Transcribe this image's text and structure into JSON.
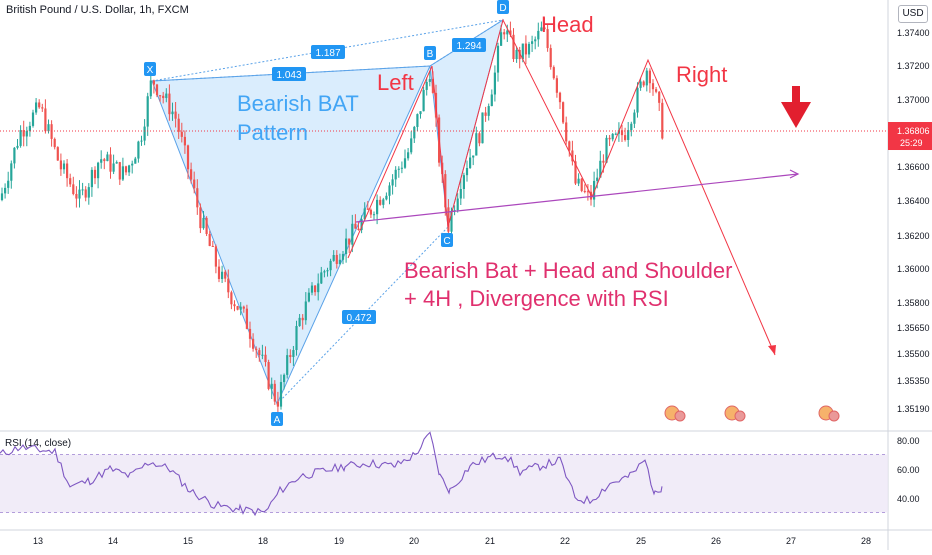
{
  "header": {
    "symbol_title": "British Pound / U.S. Dollar, 1h, FXCM",
    "currency": "USD"
  },
  "price_tag": {
    "value": "1.36806",
    "countdown": "25:29",
    "color": "#f23645"
  },
  "annotations": {
    "pattern_name_line1": "Bearish BAT",
    "pattern_name_line2": "Pattern",
    "left": "Left",
    "head": "Head",
    "right": "Right",
    "summary_line1": "Bearish Bat + Head and Shoulder",
    "summary_line2": "+ 4H , Divergence with RSI",
    "ratio_xb": "1.187",
    "ratio_xa": "1.043",
    "ratio_bd": "1.294",
    "ratio_ac": "0.472",
    "point_x": "X",
    "point_a": "A",
    "point_b": "B",
    "point_c": "C",
    "point_d": "D"
  },
  "chart_data": [
    {
      "type": "candlestick",
      "title": "British Pound / U.S. Dollar, 1h, FXCM",
      "y_ticks": [
        "1.37400",
        "1.37200",
        "1.37000",
        "1.36800",
        "1.36600",
        "1.36400",
        "1.36200",
        "1.36000",
        "1.35800",
        "1.35650",
        "1.35500",
        "1.35350",
        "1.35190"
      ],
      "x_ticks": [
        "13",
        "14",
        "15",
        "18",
        "19",
        "20",
        "21",
        "22",
        "25",
        "26",
        "27",
        "28"
      ],
      "ylim": [
        1.3519,
        1.3745
      ],
      "key_points": [
        {
          "label": "X",
          "date": "14",
          "price": 1.3712
        },
        {
          "label": "A",
          "date": "18",
          "price": 1.3521
        },
        {
          "label": "B",
          "date": "20",
          "price": 1.3718
        },
        {
          "label": "C",
          "date": "20",
          "price": 1.3624
        },
        {
          "label": "D",
          "date": "21",
          "price": 1.3745
        }
      ],
      "current_price": 1.36806,
      "colors": {
        "up": "#26a69a",
        "down": "#ef5350",
        "pattern_fill": "#bbdefb",
        "neckline": "#ab47bc",
        "projection": "#f23645"
      }
    },
    {
      "type": "line",
      "title": "RSI (14, close)",
      "y_ticks": [
        "80.00",
        "60.00",
        "40.00"
      ],
      "ylim": [
        25,
        85
      ],
      "overbought": 70,
      "oversold": 30,
      "color": "#7e57c2"
    }
  ]
}
